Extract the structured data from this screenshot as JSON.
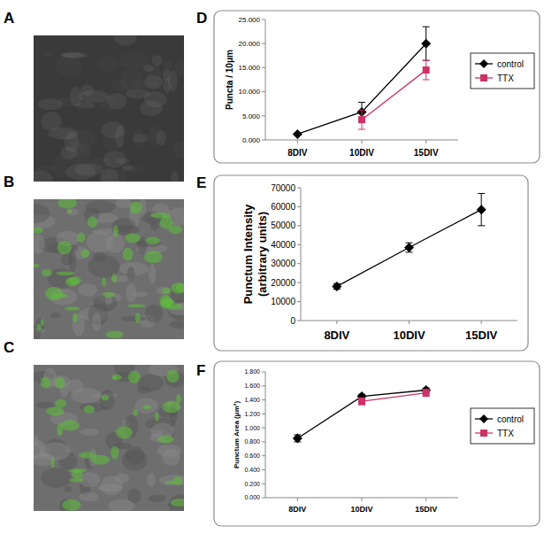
{
  "panels": {
    "letters": [
      "A",
      "B",
      "C",
      "D",
      "E",
      "F"
    ]
  },
  "chart_data": [
    {
      "type": "line",
      "categories": [
        "8DIV",
        "10DIV",
        "15DIV"
      ],
      "y_label": "Puncta / 10μm",
      "ylim": [
        0,
        25
      ],
      "yticks": [
        {
          "value": 0,
          "label": "0.000"
        },
        {
          "value": 5,
          "label": "5.000"
        },
        {
          "value": 10,
          "label": "10.000"
        },
        {
          "value": 15,
          "label": "15.000"
        },
        {
          "value": 20,
          "label": "20.000"
        },
        {
          "value": 25,
          "label": "25.000"
        }
      ],
      "grid": false,
      "legend": "right",
      "series": [
        {
          "name": "control",
          "color": "#000000",
          "marker": "diamond",
          "values": [
            1.2,
            5.8,
            20.0
          ],
          "errors": [
            0.2,
            2.0,
            3.5
          ]
        },
        {
          "name": "TTX",
          "color": "#cc3366",
          "marker": "square",
          "values": [
            null,
            4.2,
            14.5
          ],
          "errors": [
            null,
            2.0,
            2.0
          ]
        }
      ]
    },
    {
      "type": "line",
      "categories": [
        "8DIV",
        "10DIV",
        "15DIV"
      ],
      "y_label": "Punctum Intensity (arbitrary units)",
      "ylim": [
        0,
        70000
      ],
      "yticks": [
        0,
        10000,
        20000,
        30000,
        40000,
        50000,
        60000,
        70000
      ],
      "grid": false,
      "series": [
        {
          "color": "#000000",
          "marker": "diamond",
          "values": [
            18000,
            38500,
            58500
          ],
          "errors": [
            1500,
            2500,
            8500
          ]
        }
      ]
    },
    {
      "type": "line",
      "categories": [
        "8DIV",
        "10DIV",
        "15DIV"
      ],
      "y_label": "Punctum Area (μm²)",
      "ylim": [
        0,
        1.8
      ],
      "yticks": [
        {
          "value": 0,
          "label": "0.000"
        },
        {
          "value": 0.2,
          "label": "0.200"
        },
        {
          "value": 0.4,
          "label": "0.400"
        },
        {
          "value": 0.6,
          "label": "0.600"
        },
        {
          "value": 0.8,
          "label": "0.800"
        },
        {
          "value": 1.0,
          "label": "1.000"
        },
        {
          "value": 1.2,
          "label": "1.200"
        },
        {
          "value": 1.4,
          "label": "1.400"
        },
        {
          "value": 1.6,
          "label": "1.600"
        },
        {
          "value": 1.8,
          "label": "1.800"
        }
      ],
      "grid": false,
      "legend": "right",
      "series": [
        {
          "name": "control",
          "color": "#000000",
          "marker": "diamond",
          "values": [
            0.85,
            1.45,
            1.54
          ],
          "errors": [
            0.05,
            0.03,
            0.03
          ]
        },
        {
          "name": "TTX",
          "color": "#cc3366",
          "marker": "square",
          "values": [
            null,
            1.38,
            1.5
          ],
          "errors": [
            null,
            0.05,
            0.05
          ]
        }
      ]
    }
  ]
}
